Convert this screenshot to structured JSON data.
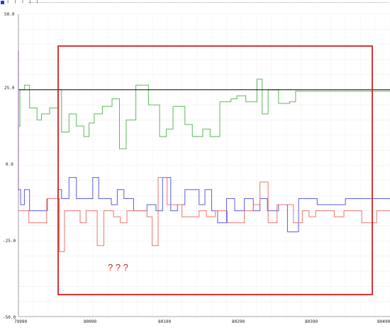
{
  "toolbar": {
    "ticks": "| | | | |"
  },
  "annotation": {
    "text": "? ? ?"
  },
  "colors": {
    "green": "#5db85a",
    "blue": "#5b5bdc",
    "red": "#e8766b",
    "box": "#d42020",
    "ref": "#000000",
    "purple": "#c050e0"
  },
  "chart_data": {
    "type": "line",
    "ylim": [
      -50,
      50
    ],
    "xlim": [
      79990,
      80490
    ],
    "y_ticks": [
      "50.0",
      "25.0",
      "0.0",
      "-25.0",
      "-50.0"
    ],
    "x_ticks": [
      "79990",
      "80090",
      "80190",
      "80290",
      "80390",
      "80490"
    ],
    "grid": true,
    "reference_line": 25,
    "series": [
      {
        "color": "green",
        "x": [
          79990,
          79991,
          79992,
          79998,
          80005,
          80015,
          80021,
          80032,
          80043,
          80048,
          80058,
          80068,
          80078,
          80085,
          80092,
          80103,
          80116,
          80126,
          80135,
          80148,
          80165,
          80180,
          80189,
          80198,
          80214,
          80224,
          80238,
          80248,
          80261,
          80276,
          80284,
          80296,
          80305,
          80311,
          80318,
          80326,
          80340,
          80355,
          80363,
          80378,
          80390,
          80404,
          80418,
          80432,
          80445,
          80458,
          80466,
          80474,
          80484,
          80490
        ],
        "y": [
          13,
          13,
          25,
          26.5,
          19,
          15,
          17,
          19,
          25,
          11,
          17,
          13,
          9.5,
          14,
          17,
          19.5,
          22,
          5.5,
          15,
          26.5,
          20,
          9.5,
          12,
          19.5,
          13.5,
          9.5,
          12,
          9.5,
          21,
          22,
          23,
          21,
          21,
          28.5,
          17,
          25,
          20.5,
          21,
          24.5,
          24.5,
          24.5,
          24.5,
          24.5,
          24.5,
          24.5,
          24.5,
          24.5,
          24.5,
          24.5,
          24.5
        ]
      },
      {
        "color": "blue",
        "x": [
          79990,
          79993,
          79998,
          80005,
          80015,
          80021,
          80029,
          80043,
          80048,
          80058,
          80068,
          80078,
          80090,
          80098,
          80107,
          80115,
          80123,
          80132,
          80145,
          80154,
          80163,
          80175,
          80184,
          80195,
          80204,
          80214,
          80224,
          80233,
          80241,
          80250,
          80258,
          80270,
          80281,
          80294,
          80306,
          80315,
          80325,
          80340,
          80352,
          80367,
          80378,
          80392,
          80404,
          80416,
          80430,
          80443,
          80460,
          80476,
          80484,
          80490
        ],
        "y": [
          -8,
          -13,
          -8,
          -15,
          -15,
          -15,
          -11,
          -8,
          -11,
          -4,
          -11,
          -11,
          -4,
          -11,
          -11,
          -13,
          -8,
          -11,
          -15,
          -15,
          -13,
          -15,
          -4,
          -15,
          -13,
          -8,
          -8,
          -13,
          -8,
          -15,
          -19,
          -11,
          -15,
          -11,
          -15,
          -11,
          -15,
          -13,
          -22,
          -11,
          -11,
          -13,
          -13,
          -13,
          -11,
          -11,
          -11,
          -11,
          -11,
          -11
        ]
      },
      {
        "color": "red",
        "x": [
          79990,
          79992,
          79998,
          80004,
          80016,
          80028,
          80045,
          80052,
          80063,
          80073,
          80081,
          80088,
          80096,
          80105,
          80118,
          80127,
          80136,
          80145,
          80154,
          80163,
          80170,
          80178,
          80190,
          80199,
          80210,
          80221,
          80233,
          80243,
          80255,
          80264,
          80271,
          80281,
          80294,
          80306,
          80315,
          80326,
          80338,
          80348,
          80360,
          80372,
          80381,
          80390,
          80404,
          80415,
          80428,
          80441,
          80452,
          80463,
          80472,
          80484,
          80490
        ],
        "y": [
          -15,
          -15,
          -15,
          -19,
          -19,
          -11,
          -28.5,
          -15,
          -15,
          -19,
          -15,
          -15,
          -26.5,
          -15,
          -17,
          -19,
          -15,
          -15,
          -15,
          -17,
          -26.5,
          -4,
          -13,
          -13,
          -17,
          -17,
          -15,
          -17,
          -15,
          -15,
          -19,
          -19,
          -15,
          -13,
          -5.5,
          -19,
          -13,
          -13,
          -19,
          -15,
          -17,
          -15,
          -15,
          -17,
          -15,
          -15,
          -19,
          -19,
          -15,
          -15,
          -15
        ]
      }
    ]
  }
}
